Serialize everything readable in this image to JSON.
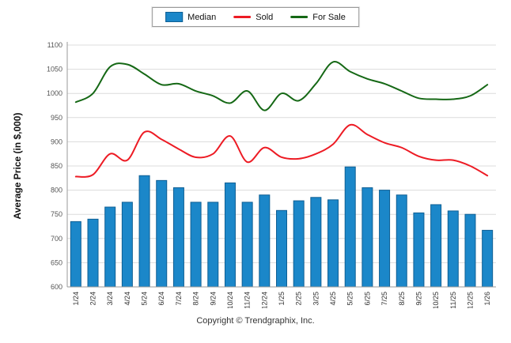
{
  "legend": {
    "median": "Median",
    "sold": "Sold",
    "for_sale": "For Sale"
  },
  "footer": {
    "copyright": "Copyright © Trendgraphix, Inc."
  },
  "chart_data": {
    "type": "bar",
    "title": "",
    "ylabel": "Average Price (in $,000)",
    "xlabel": "",
    "ylim": [
      600,
      1100
    ],
    "yticks": [
      600,
      650,
      700,
      750,
      800,
      850,
      900,
      950,
      1000,
      1050,
      1100
    ],
    "grid": true,
    "legend_position": "top-center",
    "categories": [
      "1/24",
      "2/24",
      "3/24",
      "4/24",
      "5/24",
      "6/24",
      "7/24",
      "8/24",
      "9/24",
      "10/24",
      "11/24",
      "12/24",
      "1/25",
      "2/25",
      "3/25",
      "4/25",
      "5/25",
      "6/25",
      "7/25",
      "8/25",
      "9/25",
      "10/25",
      "11/25",
      "12/25",
      "1/26"
    ],
    "series": [
      {
        "name": "Median",
        "type": "bar",
        "color": "#1b87c9",
        "edge_color": "#0f5f94",
        "values": [
          735,
          740,
          765,
          775,
          830,
          820,
          805,
          775,
          775,
          815,
          775,
          790,
          758,
          778,
          785,
          780,
          848,
          805,
          800,
          790,
          753,
          770,
          757,
          750,
          717
        ]
      },
      {
        "name": "Sold",
        "type": "line",
        "color": "#ed1b24",
        "values": [
          828,
          832,
          875,
          862,
          920,
          905,
          885,
          868,
          875,
          912,
          858,
          888,
          868,
          865,
          875,
          895,
          935,
          915,
          898,
          888,
          870,
          862,
          862,
          850,
          830
        ]
      },
      {
        "name": "For Sale",
        "type": "line",
        "color": "#156815",
        "values": [
          982,
          1000,
          1055,
          1060,
          1040,
          1018,
          1020,
          1005,
          995,
          980,
          1005,
          965,
          1000,
          985,
          1020,
          1065,
          1045,
          1030,
          1020,
          1005,
          990,
          988,
          988,
          995,
          1018
        ]
      }
    ]
  }
}
